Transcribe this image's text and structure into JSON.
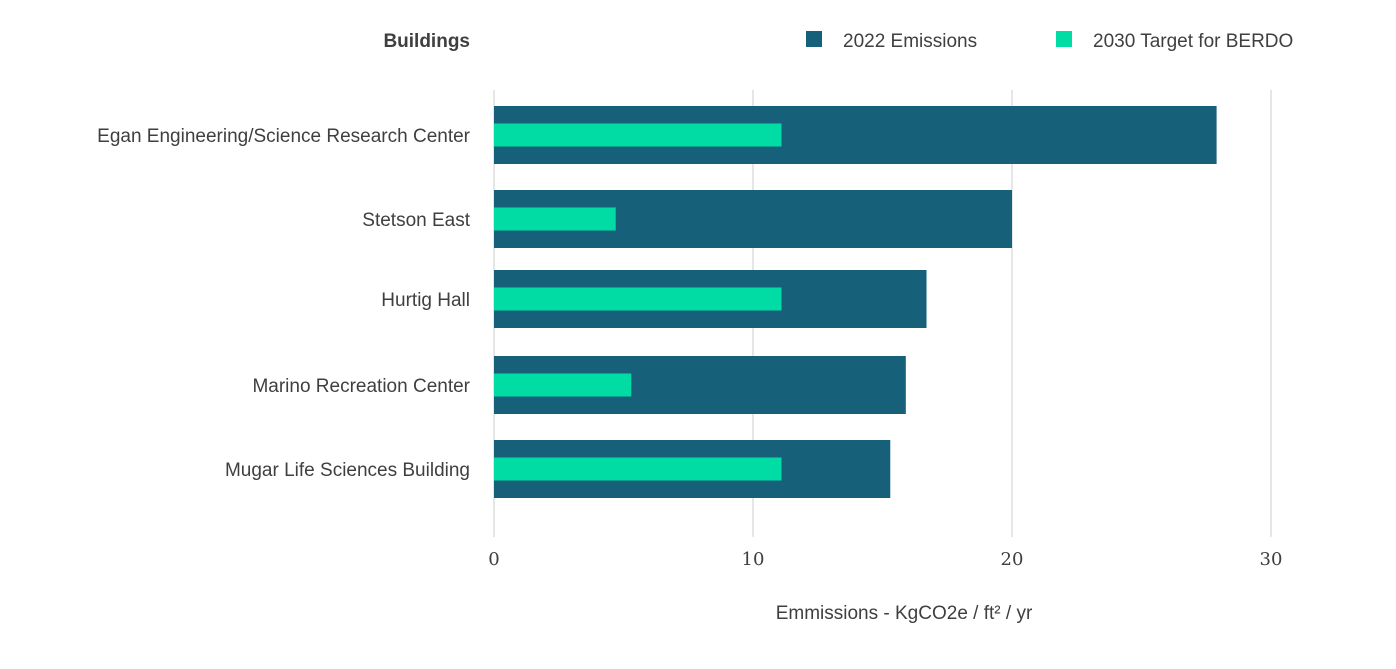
{
  "chart_data": {
    "type": "bar",
    "orientation": "horizontal",
    "category_header": "Buildings",
    "categories": [
      "Egan Engineering/Science Research Center",
      "Stetson East",
      "Hurtig Hall",
      "Marino Recreation Center",
      "Mugar Life Sciences Building"
    ],
    "series": [
      {
        "name": "2022 Emissions",
        "color": "#17607a",
        "values": [
          27.9,
          20.0,
          16.7,
          15.9,
          15.3
        ]
      },
      {
        "name": "2030 Target for BERDO",
        "color": "#00dca4",
        "values": [
          11.1,
          4.7,
          11.1,
          5.3,
          11.1
        ]
      }
    ],
    "xlabel": "Emmissions - KgCO2e / ft² / yr",
    "xlim": [
      0,
      30
    ],
    "xticks": [
      0,
      10,
      20,
      30
    ],
    "grid": true,
    "legend_position": "top-right"
  }
}
